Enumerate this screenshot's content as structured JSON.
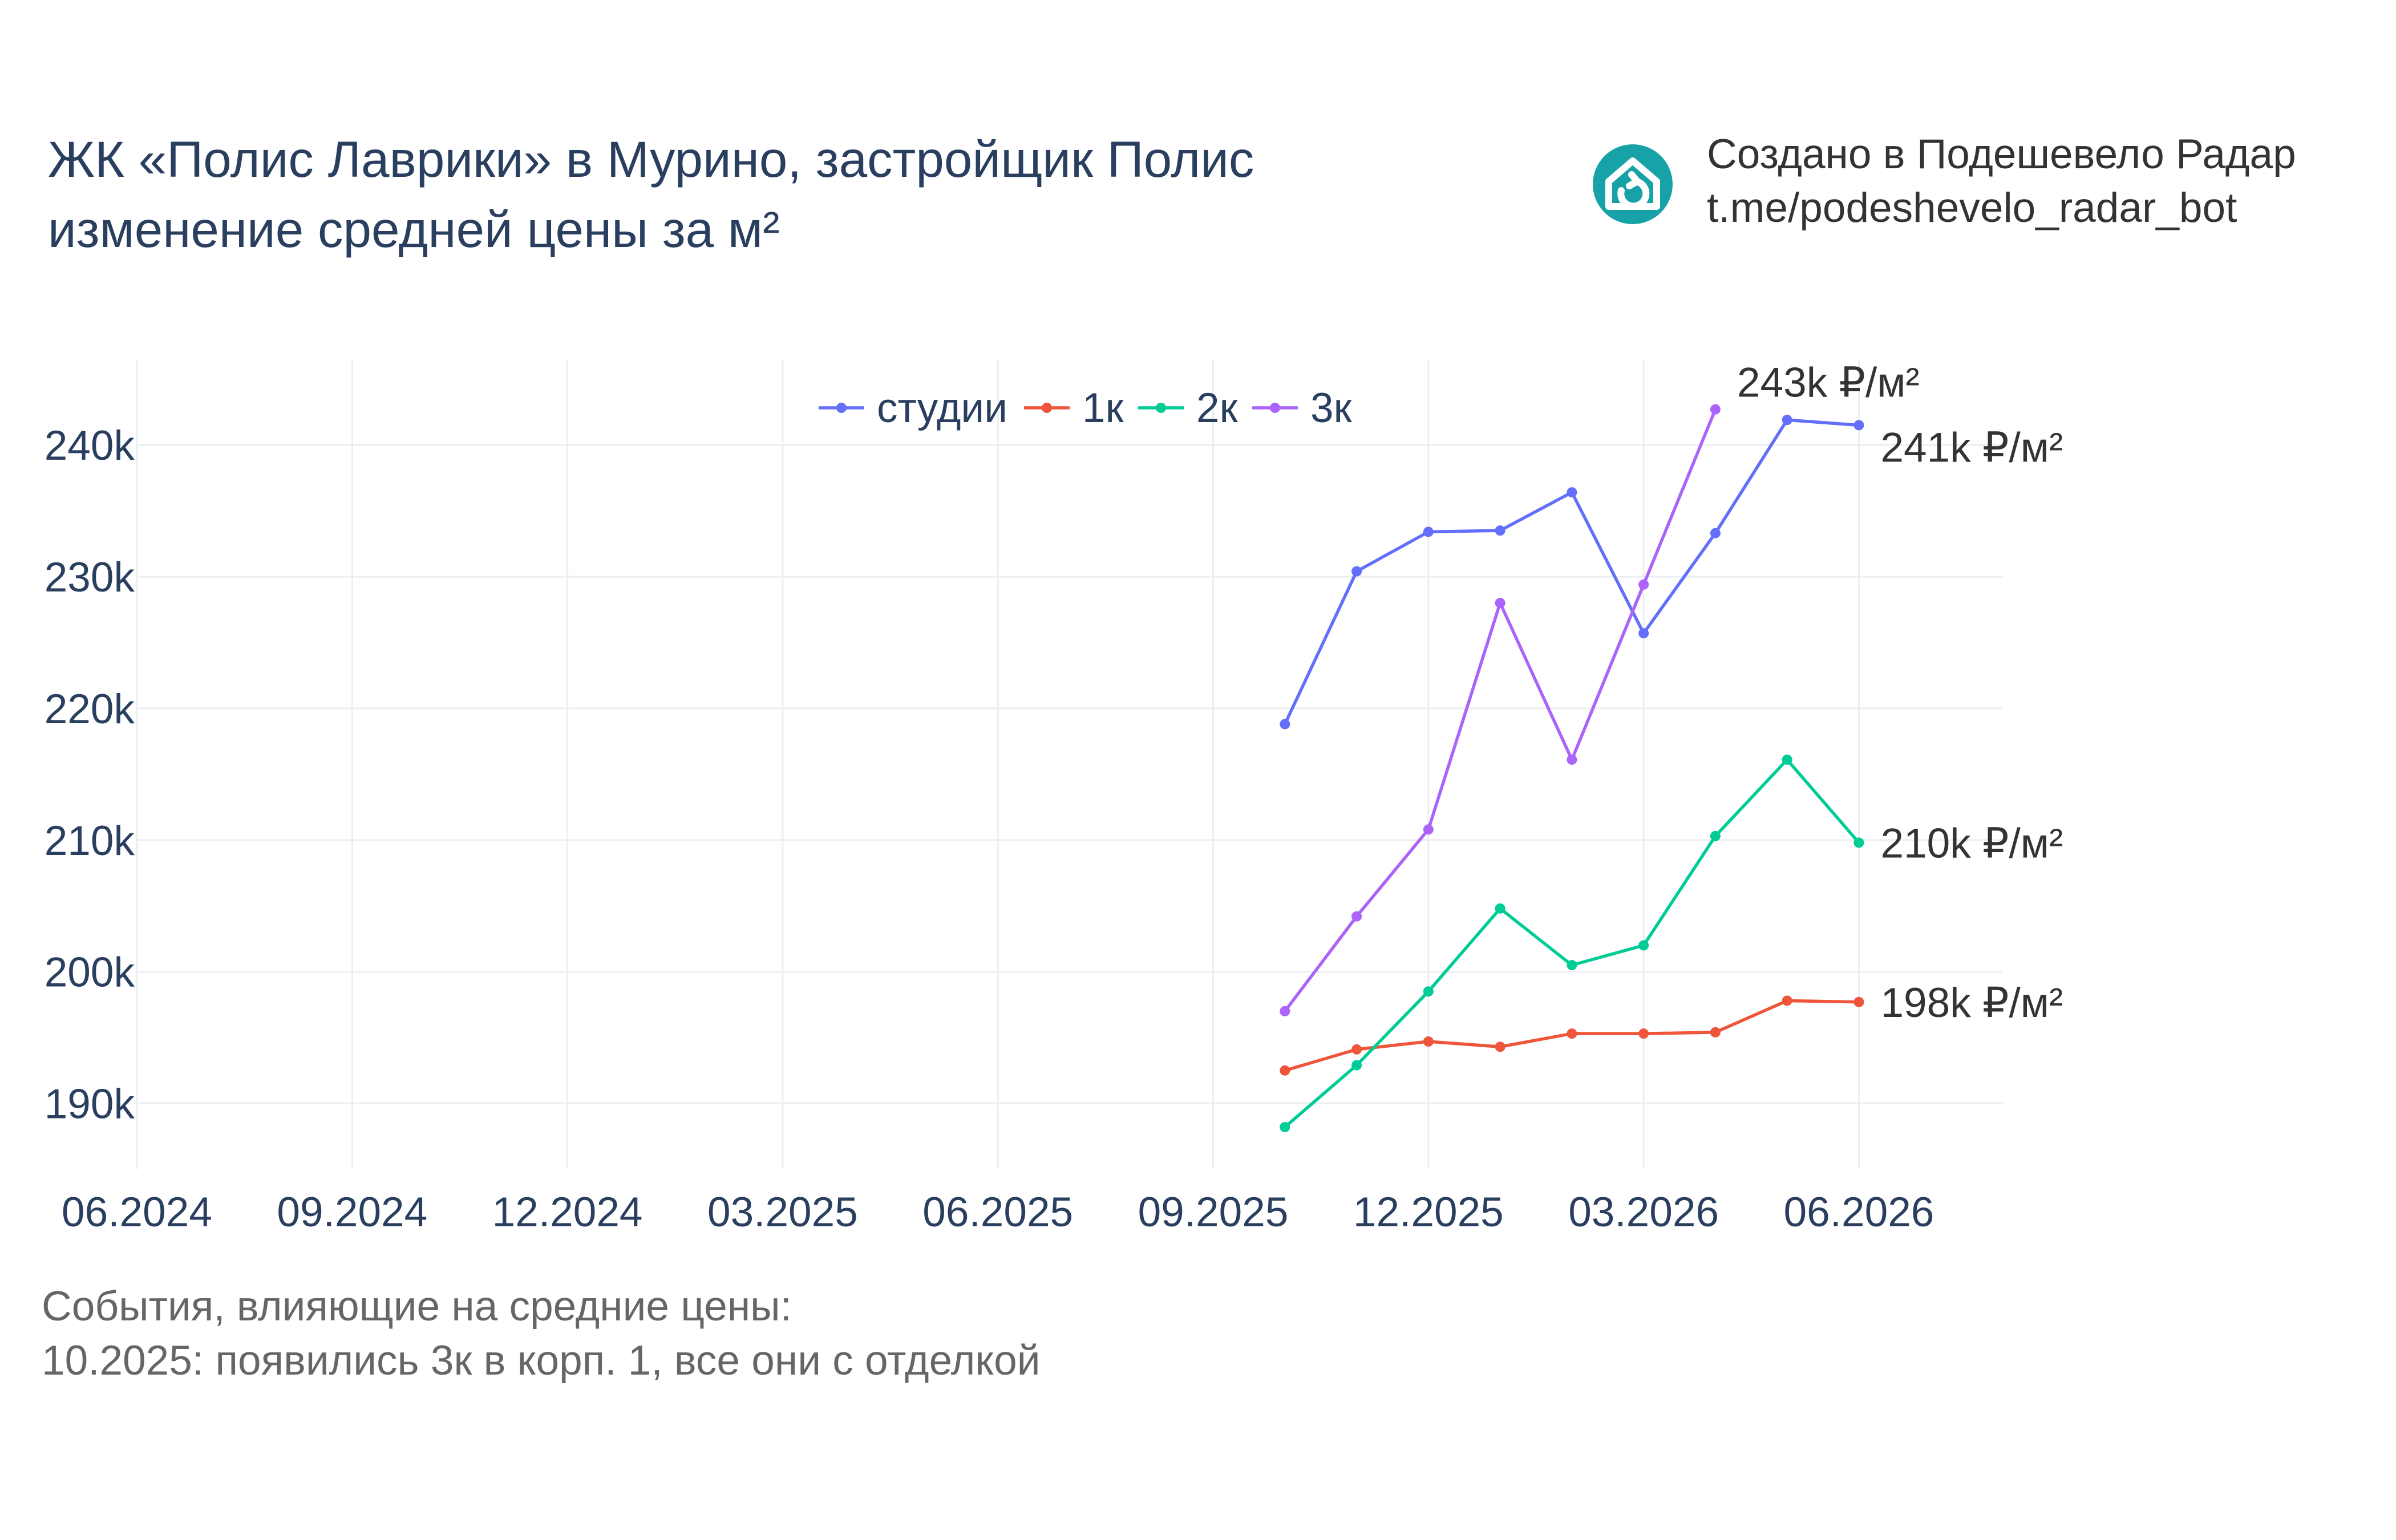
{
  "header": {
    "title_line1": "ЖК «Полис Лаврики» в Мурино, застройщик Полис",
    "title_line2": "изменение средней цены за м²"
  },
  "branding": {
    "line1": "Создано в Подешевело Радар",
    "line2": "t.me/podeshevelo_radar_bot",
    "logo_icon": "house-refresh-icon",
    "logo_color": "#17a2a8"
  },
  "events": {
    "heading": "События, влияющие на средние цены:",
    "items": [
      "10.2025: появились 3к в корп. 1, все они с отделкой"
    ]
  },
  "chart_data": {
    "type": "line",
    "x": [
      "10.2025",
      "11.2025",
      "12.2025",
      "01.2026",
      "02.2026",
      "03.2026",
      "04.2026",
      "05.2026",
      "06.2026"
    ],
    "x_ticks": [
      "06.2024",
      "09.2024",
      "12.2024",
      "03.2025",
      "06.2025",
      "09.2025",
      "12.2025",
      "03.2026",
      "06.2026"
    ],
    "y_ticks": [
      190000,
      200000,
      210000,
      220000,
      230000,
      240000
    ],
    "y_tick_labels": [
      "190k",
      "200k",
      "210k",
      "220k",
      "230k",
      "240k"
    ],
    "xlim": [
      "06.2024",
      "08.2026"
    ],
    "ylim": [
      185000,
      246500
    ],
    "grid": true,
    "legend_position": "top-center",
    "series": [
      {
        "name": "студии",
        "color": "#636efa",
        "values": [
          218800,
          230400,
          233400,
          233500,
          236400,
          225700,
          233300,
          241900,
          241500
        ],
        "end_label": "241k ₽/м²",
        "end_label_position": "below-right"
      },
      {
        "name": "1к",
        "color": "#ef553b",
        "values": [
          192500,
          194100,
          194700,
          194300,
          195300,
          195300,
          195400,
          197800,
          197700
        ],
        "end_label": "198k ₽/м²",
        "end_label_position": "right"
      },
      {
        "name": "2к",
        "color": "#00cc96",
        "values": [
          188200,
          192900,
          198500,
          204800,
          200500,
          202000,
          210300,
          216100,
          209800
        ],
        "end_label": "210k ₽/м²",
        "end_label_position": "right"
      },
      {
        "name": "3к",
        "color": "#ab63fa",
        "values": [
          197000,
          204200,
          210800,
          228000,
          216100,
          229400,
          242700,
          null,
          null
        ],
        "end_label": "243k ₽/м²",
        "end_label_position": "above-right"
      }
    ]
  }
}
